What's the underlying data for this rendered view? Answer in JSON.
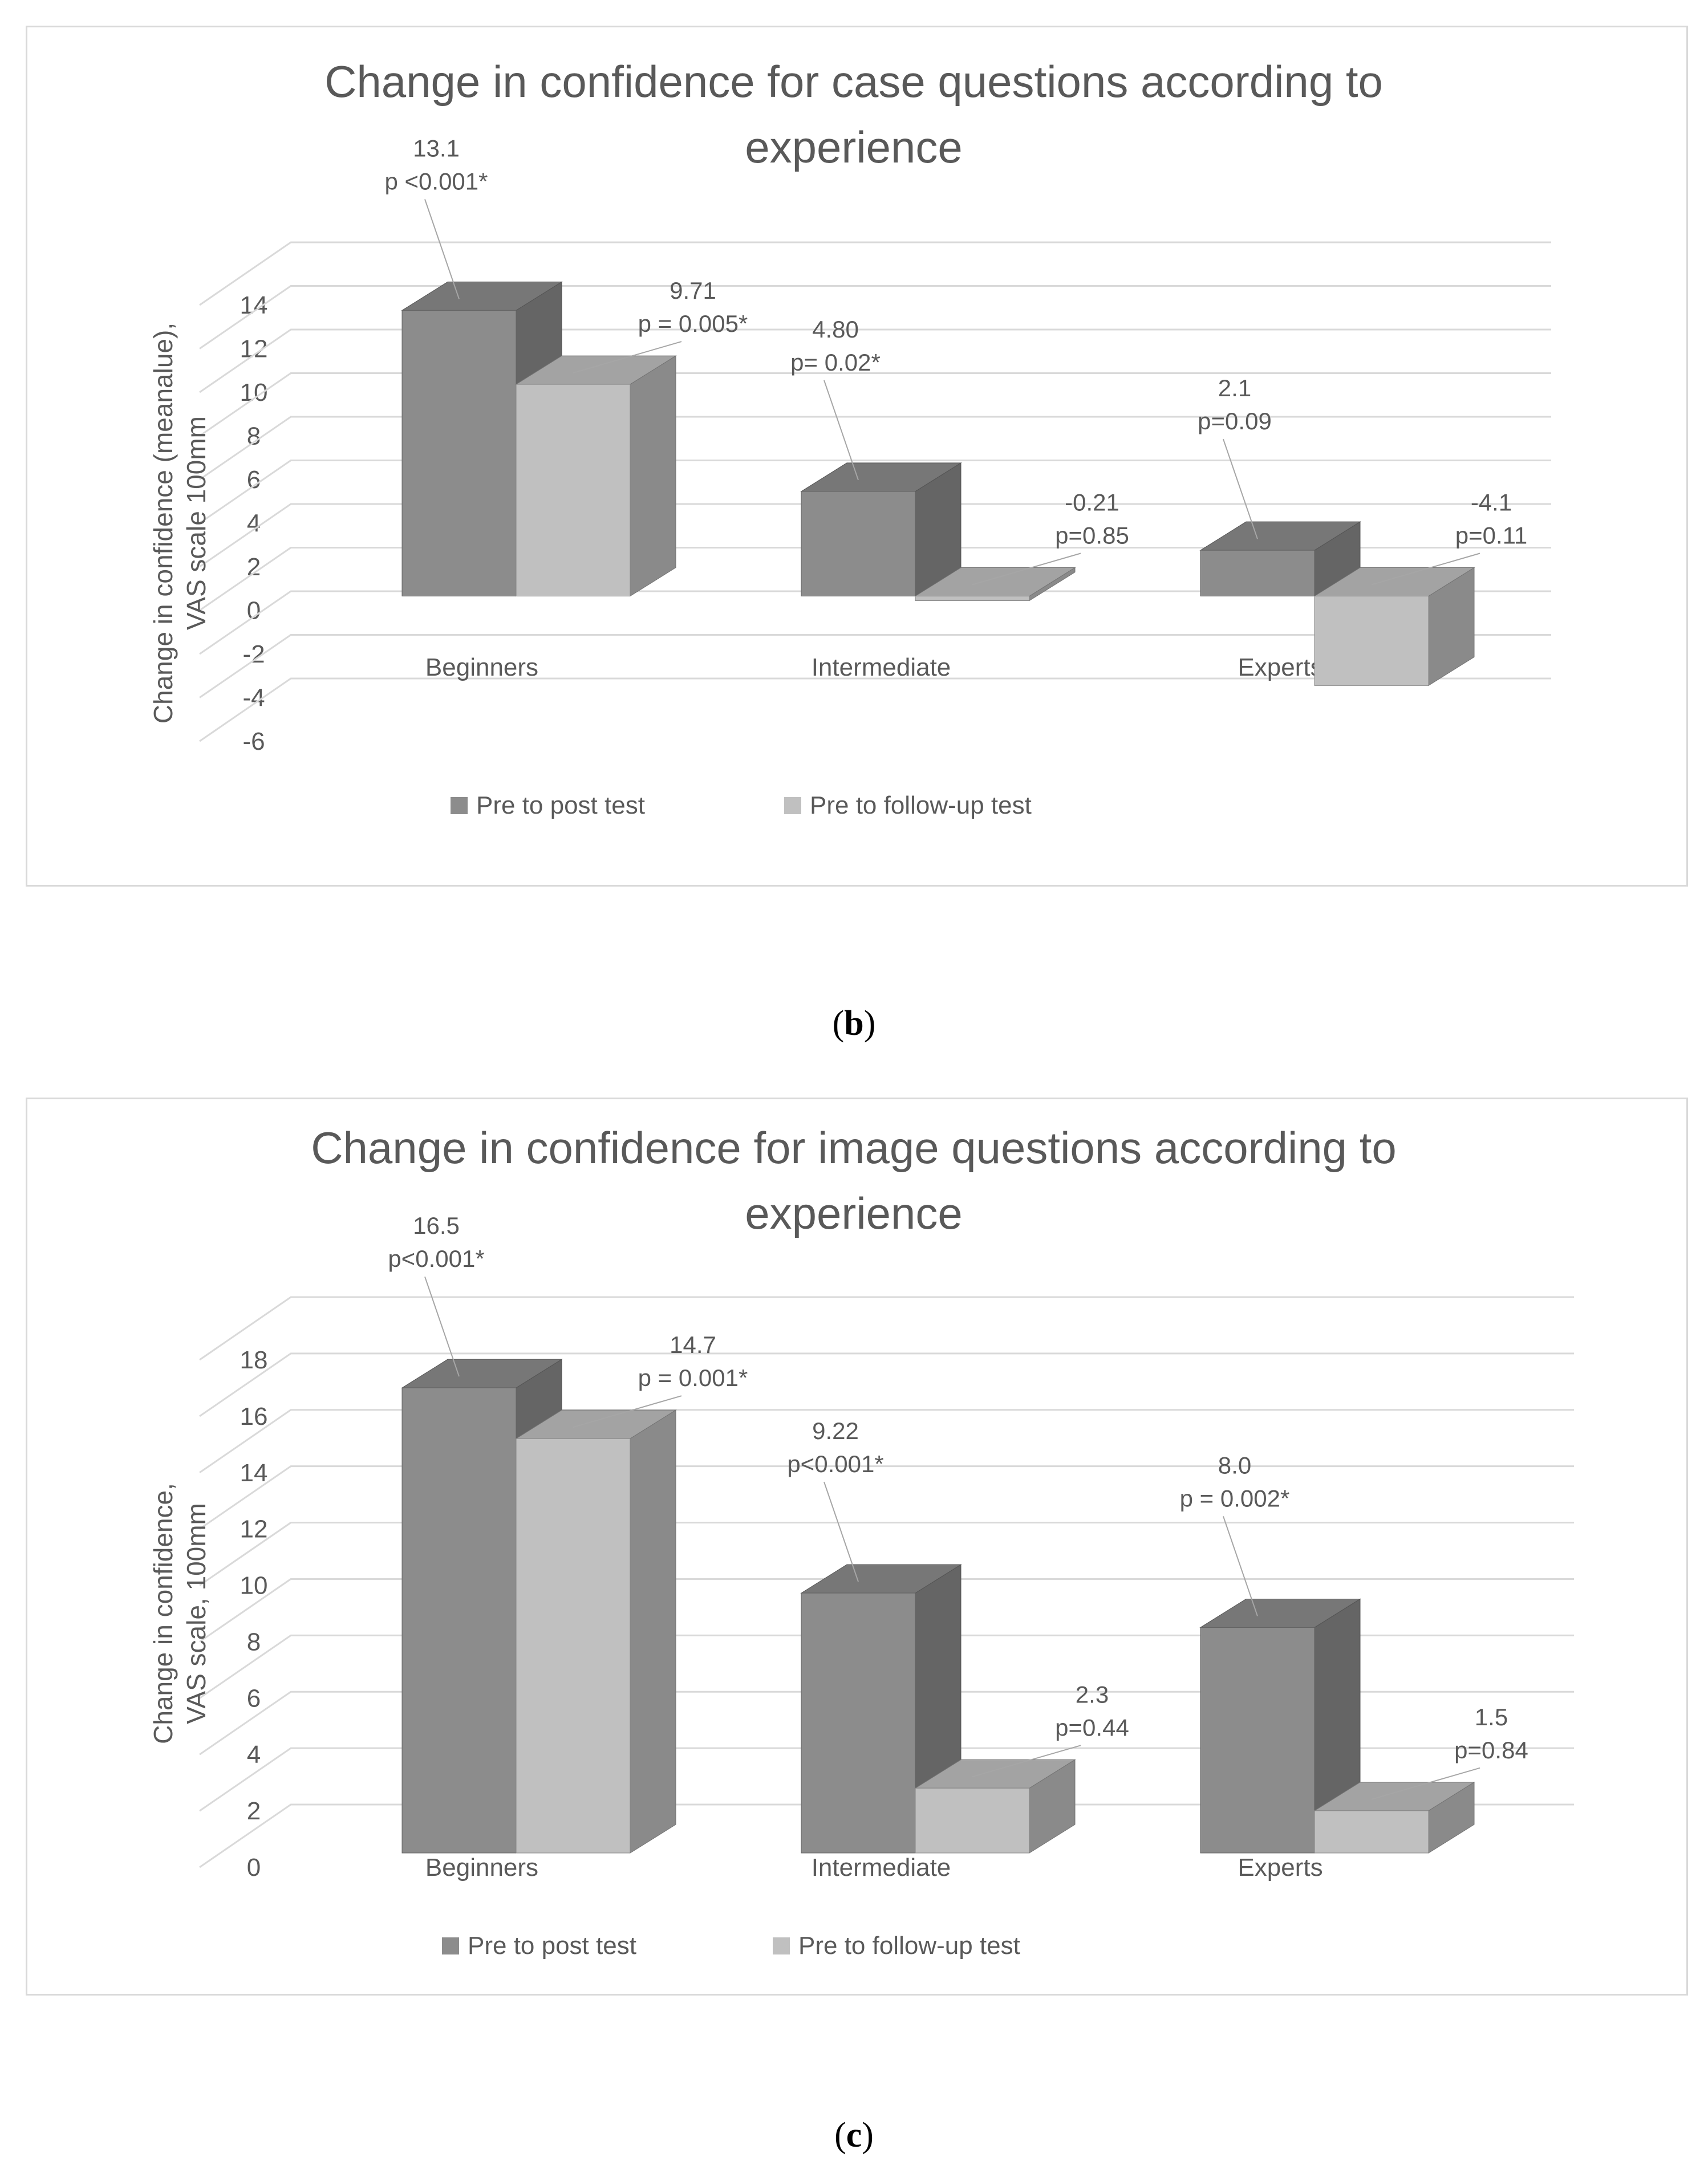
{
  "chart_data": [
    {
      "type": "bar",
      "style": "3d-clustered-column",
      "title": "Change in confidence for case questions according to experience",
      "ylabel": "Change in confidence (meanalue), VAS scale 100mm",
      "xlabel": "",
      "ylim": [
        -6,
        14
      ],
      "yticks": [
        "14",
        "12",
        "10",
        "8",
        "6",
        "4",
        "2",
        "0",
        "-2",
        "-4",
        "-6"
      ],
      "categories": [
        "Beginners",
        "Intermediate",
        "Experts"
      ],
      "series": [
        {
          "name": "Pre to post test",
          "color": "#8c8c8c",
          "values": [
            13.1,
            4.8,
            2.1
          ],
          "labels": [
            [
              "13.1",
              "p <0.001*"
            ],
            [
              "4.80",
              "p= 0.02*"
            ],
            [
              "2.1",
              "p=0.09"
            ]
          ]
        },
        {
          "name": "Pre to follow-up test",
          "color": "#c0c0c0",
          "values": [
            9.71,
            -0.21,
            -4.1
          ],
          "labels": [
            [
              "9.71",
              "p = 0.005*"
            ],
            [
              "-0.21",
              "p=0.85"
            ],
            [
              "-4.1",
              "p=0.11"
            ]
          ]
        }
      ],
      "legend": "bottom",
      "caption": "b"
    },
    {
      "type": "bar",
      "style": "3d-clustered-column",
      "title": "Change in confidence for image questions according to experience",
      "ylabel": "Change in confidence, VAS scale, 100mm",
      "xlabel": "",
      "ylim": [
        0,
        18
      ],
      "yticks": [
        "18",
        "16",
        "14",
        "12",
        "10",
        "8",
        "6",
        "4",
        "2",
        "0"
      ],
      "categories": [
        "Beginners",
        "Intermediate",
        "Experts"
      ],
      "series": [
        {
          "name": "Pre to post test",
          "color": "#8c8c8c",
          "values": [
            16.5,
            9.22,
            8.0
          ],
          "labels": [
            [
              "16.5",
              "p<0.001*"
            ],
            [
              "9.22",
              "p<0.001*"
            ],
            [
              "8.0",
              "p = 0.002*"
            ]
          ]
        },
        {
          "name": "Pre to follow-up test",
          "color": "#c0c0c0",
          "values": [
            14.7,
            2.3,
            1.5
          ],
          "labels": [
            [
              "14.7",
              "p = 0.001*"
            ],
            [
              "2.3",
              "p=0.44"
            ],
            [
              "1.5",
              "p=0.84"
            ]
          ]
        }
      ],
      "legend": "bottom",
      "caption": "c"
    }
  ]
}
